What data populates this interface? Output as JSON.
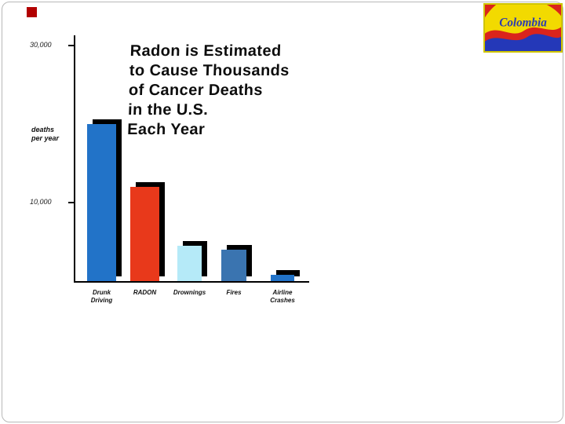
{
  "bullet": {
    "color": "#b20000"
  },
  "logo": {
    "text": "Colombia",
    "yellow": "#f2da00",
    "blue": "#2438b8",
    "red": "#da241c",
    "text_color": "#2a3ab4",
    "border": "#cfc400"
  },
  "chart_data": {
    "type": "bar",
    "title": "Radon is Estimated to Cause Thousands of Cancer Deaths in the U.S. Each Year",
    "title_lines": [
      "Radon is Estimated",
      "to Cause Thousands",
      "of Cancer Deaths",
      "in the U.S.",
      "Each Year"
    ],
    "xlabel": "",
    "ylabel": "deaths per year",
    "ylabel_lines": [
      "deaths",
      "per year"
    ],
    "yticks": [
      {
        "label": "30,000",
        "value": 30000
      },
      {
        "label": "10,000",
        "value": 10000
      }
    ],
    "categories": [
      "Drunk Driving",
      "RADON",
      "Drownings",
      "Fires",
      "Airline Crashes"
    ],
    "category_lines": [
      [
        "Drunk",
        "Driving"
      ],
      [
        "RADON"
      ],
      [
        "Drownings"
      ],
      [
        "Fires"
      ],
      [
        "Airline",
        "Crashes"
      ]
    ],
    "values": [
      20000,
      12000,
      4500,
      4000,
      800
    ],
    "bar_colors": [
      "#2273c8",
      "#e8391b",
      "#b5eaf8",
      "#3a74b0",
      "#2273c8"
    ],
    "shadow_color": "#000000",
    "ylim": [
      0,
      30000
    ],
    "grid": false,
    "legend": false
  }
}
